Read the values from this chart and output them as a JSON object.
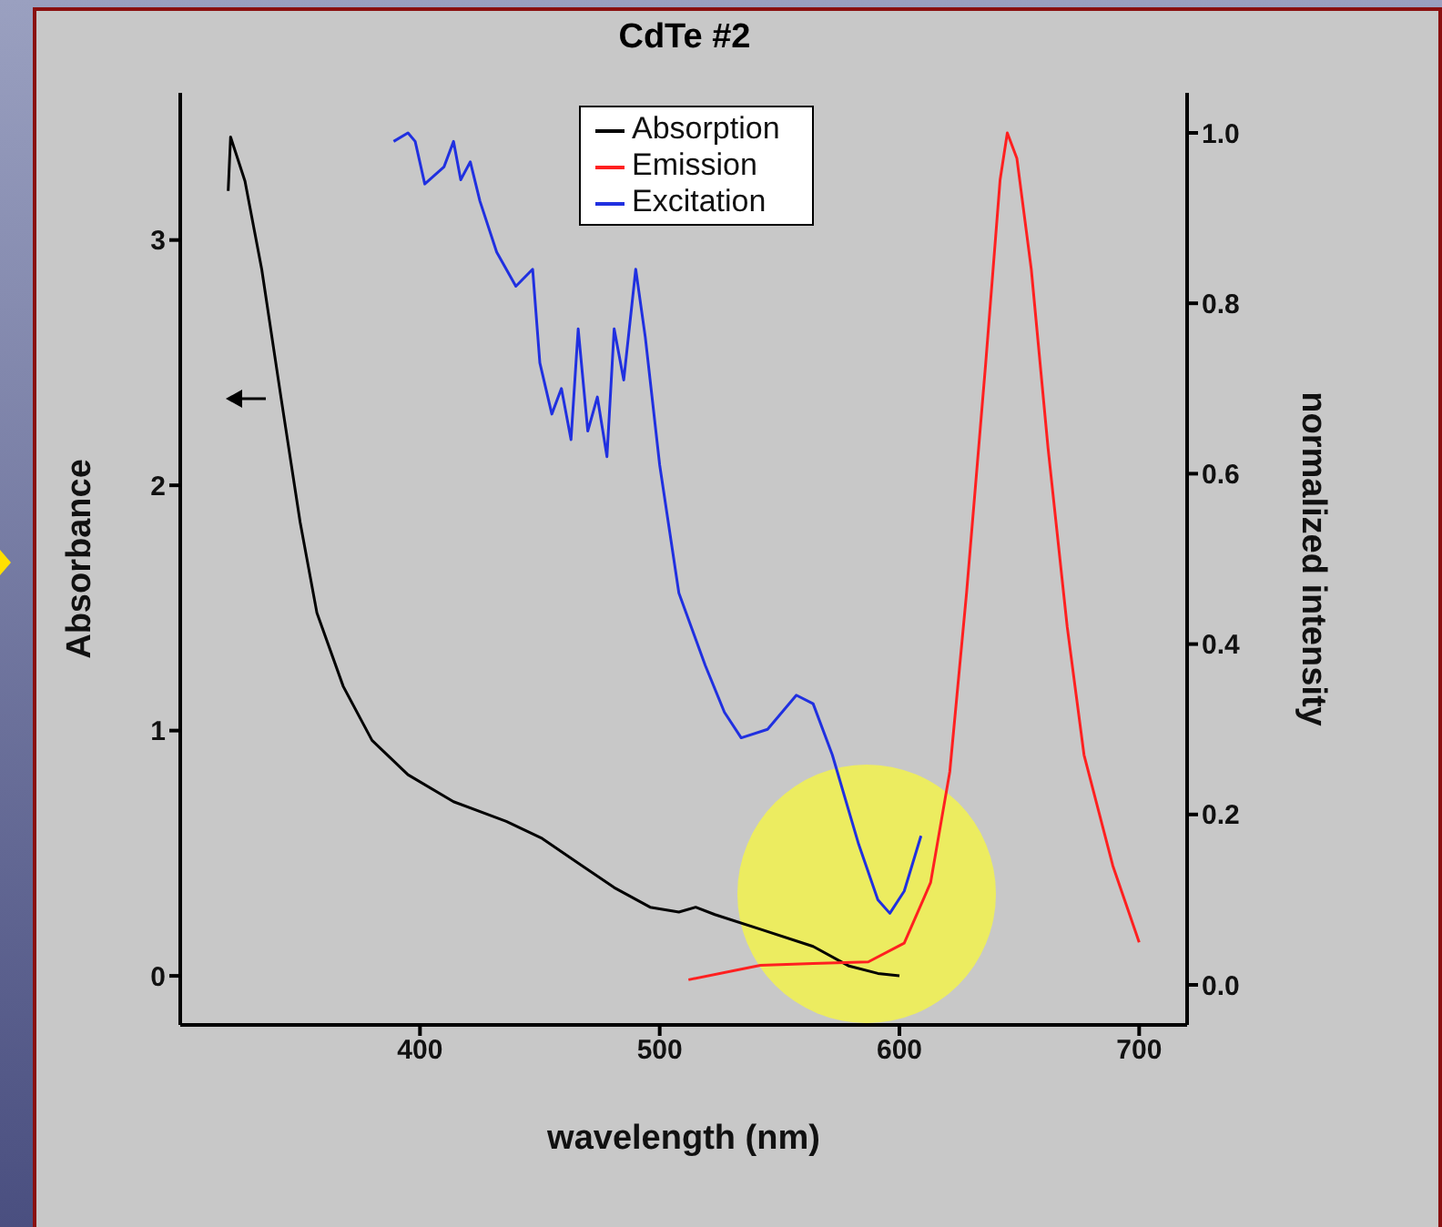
{
  "chart_data": {
    "type": "line",
    "title": "CdTe #2",
    "xlabel": "wavelength (nm)",
    "ylabel": "Absorbance",
    "y2label": "normalized intensity",
    "xlim": [
      300,
      720
    ],
    "xticks": [
      400,
      500,
      600,
      700
    ],
    "ylim": [
      -0.2,
      3.6
    ],
    "yticks": [
      0,
      1,
      2,
      3
    ],
    "y2lim": [
      -0.047,
      1.047
    ],
    "y2ticks": [
      {
        "value": 0,
        "label": "0.0"
      },
      {
        "value": 0.2,
        "label": "0.2"
      },
      {
        "value": 0.4,
        "label": "0.4"
      },
      {
        "value": 0.6,
        "label": "0.6"
      },
      {
        "value": 0.8,
        "label": "0.8"
      },
      {
        "value": 1,
        "label": "1.0"
      }
    ],
    "legend": "top",
    "grid": false,
    "marker": "none",
    "line_style": "solid",
    "series": [
      {
        "name": "Absorption",
        "color": "#000000",
        "x": [
          320,
          321,
          327,
          334,
          342,
          350,
          357,
          368,
          380,
          395,
          414,
          436,
          451,
          466,
          481,
          496,
          508,
          515,
          523,
          542,
          564,
          579,
          591,
          600
        ],
        "values": [
          3.2,
          3.42,
          3.24,
          2.88,
          2.36,
          1.85,
          1.48,
          1.18,
          0.96,
          0.82,
          0.71,
          0.63,
          0.56,
          0.46,
          0.36,
          0.28,
          0.26,
          0.28,
          0.25,
          0.19,
          0.12,
          0.04,
          0.01,
          0.0
        ]
      },
      {
        "name": "Emission",
        "color": "#ff2020",
        "axis": "y2",
        "x": [
          512,
          542,
          564,
          587,
          602,
          613,
          621,
          628,
          636,
          642,
          645,
          649,
          655,
          662,
          670,
          677,
          689,
          700
        ],
        "values": [
          0.006,
          0.023,
          0.025,
          0.027,
          0.049,
          0.12,
          0.25,
          0.46,
          0.73,
          0.945,
          1.0,
          0.97,
          0.84,
          0.63,
          0.42,
          0.27,
          0.14,
          0.05
        ]
      },
      {
        "name": "Excitation",
        "color": "#2030e0",
        "axis": "y2",
        "x": [
          389,
          395,
          398,
          402,
          410,
          414,
          417,
          421,
          425,
          432,
          440,
          447,
          450,
          455,
          459,
          463,
          466,
          470,
          474,
          478,
          481,
          485,
          490,
          494,
          500,
          508,
          519,
          527,
          534,
          545,
          557,
          564,
          572,
          583,
          591,
          596,
          602,
          609
        ],
        "values": [
          0.99,
          1.0,
          0.99,
          0.94,
          0.96,
          0.99,
          0.945,
          0.966,
          0.92,
          0.86,
          0.82,
          0.84,
          0.73,
          0.67,
          0.7,
          0.64,
          0.77,
          0.65,
          0.69,
          0.62,
          0.77,
          0.71,
          0.84,
          0.76,
          0.61,
          0.46,
          0.375,
          0.32,
          0.29,
          0.3,
          0.34,
          0.33,
          0.27,
          0.165,
          0.1,
          0.084,
          0.11,
          0.175
        ]
      }
    ]
  }
}
